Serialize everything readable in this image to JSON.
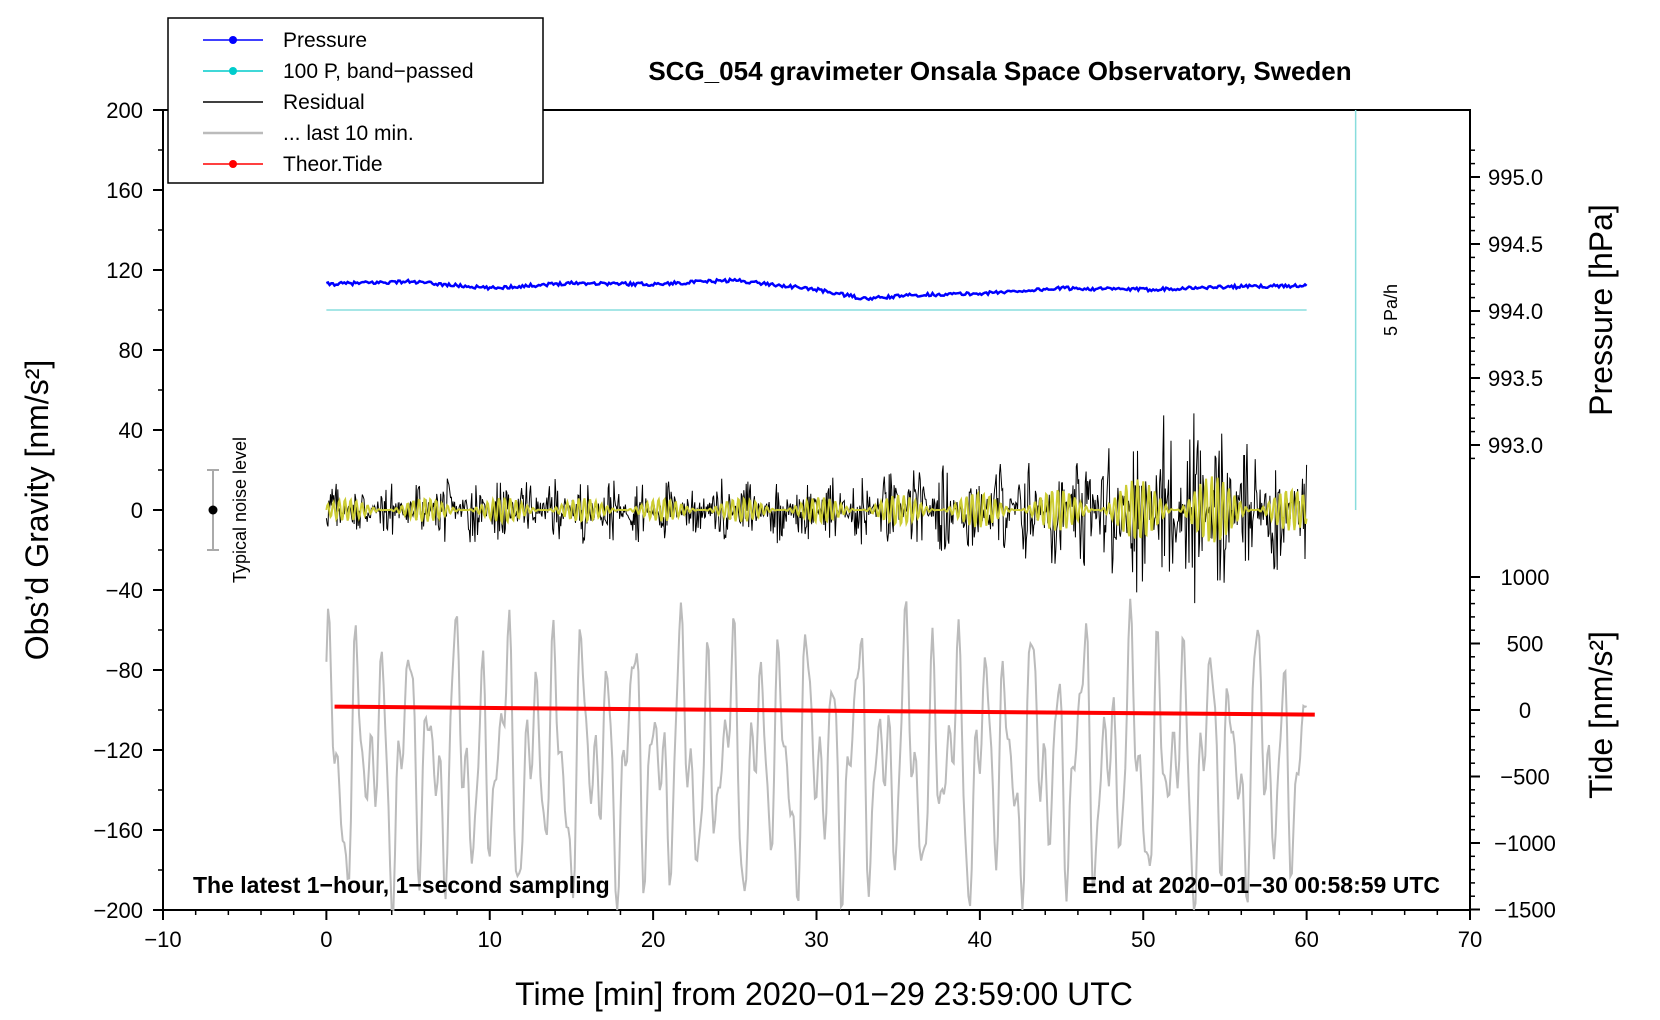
{
  "chart_data": {
    "type": "line",
    "title": "SCG_054 gravimeter Onsala Space Observatory, Sweden",
    "xlabel": "Time [min] from 2020−01−29 23:59:00 UTC",
    "xlim": [
      -10,
      70
    ],
    "xticks": [
      "−10",
      "0",
      "10",
      "20",
      "30",
      "40",
      "50",
      "60",
      "70"
    ],
    "ylabel_left": "Obs’d Gravity [nm/s²]",
    "ylim_left": [
      -200,
      200
    ],
    "yticks_left": [
      "200",
      "160",
      "120",
      "80",
      "40",
      "0",
      "−40",
      "−80",
      "−120",
      "−160",
      "−200"
    ],
    "ylabel_pressure": "Pressure [hPa]",
    "yticks_pressure": [
      "995.0",
      "994.5",
      "994.0",
      "993.5",
      "993.0"
    ],
    "ylabel_tide": "Tide [nm/s²]",
    "yticks_tide": [
      "1000",
      "500",
      "0",
      "−500",
      "−1000",
      "−1500"
    ],
    "legend": [
      {
        "label": "Pressure",
        "color": "#0000ff",
        "marker": true
      },
      {
        "label": "100 P, band−passed",
        "color": "#00cccc",
        "marker": true
      },
      {
        "label": "Residual",
        "color": "#000000",
        "marker": false
      },
      {
        "label": "... last 10 min.",
        "color": "#bbbbbb",
        "marker": false
      },
      {
        "label": "Theor.Tide",
        "color": "#ff0000",
        "marker": true
      }
    ],
    "rate_bar_label": "5 Pa/h",
    "noise_label": "Typical noise level",
    "note_left": "The latest 1−hour, 1−second sampling",
    "note_right": "End at 2020−01−30 00:58:59 UTC",
    "series": [
      {
        "name": "Pressure",
        "unit": "hPa",
        "x": [
          0,
          5,
          10,
          15,
          20,
          25,
          30,
          33,
          36,
          40,
          45,
          50,
          55,
          60
        ],
        "values": [
          994.2,
          994.22,
          994.17,
          994.21,
          994.2,
          994.23,
          994.16,
          994.09,
          994.12,
          994.13,
          994.17,
          994.16,
          994.18,
          994.19
        ]
      },
      {
        "name": "100 P, band-passed",
        "unit": "nm/s²",
        "x": [
          0,
          60
        ],
        "values": [
          100,
          100
        ]
      },
      {
        "name": "Residual",
        "unit": "nm/s²",
        "x": [
          0,
          10,
          20,
          30,
          40,
          45,
          50,
          52,
          55,
          58,
          60
        ],
        "values": [
          0,
          0,
          0,
          0,
          0,
          0,
          0,
          0,
          0,
          0,
          0
        ],
        "amplitude": [
          15,
          18,
          16,
          18,
          25,
          30,
          45,
          60,
          45,
          35,
          25
        ]
      },
      {
        "name": "... last 10 min.",
        "unit": "nm/s²",
        "x": [
          0,
          60
        ],
        "values": [
          -125,
          -125
        ],
        "amplitude": [
          70,
          70
        ]
      },
      {
        "name": "Theor.Tide",
        "unit": "nm/s²",
        "x": [
          0.5,
          60.5
        ],
        "values": [
          25,
          -35
        ]
      }
    ]
  }
}
